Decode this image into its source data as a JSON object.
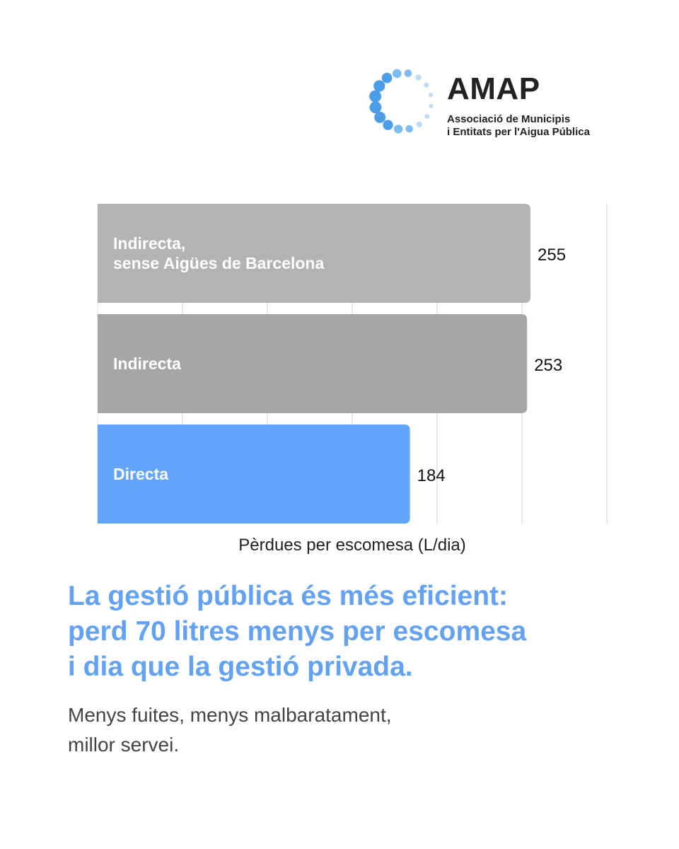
{
  "logo": {
    "name": "AMAP",
    "subtitle_line1": "Associació de Municipis",
    "subtitle_line2": "i Entitats per l'Aigua Pública",
    "colors": [
      "#bcdcf6",
      "#4b9ee6",
      "#1a74d1"
    ]
  },
  "chart_data": {
    "type": "bar",
    "orientation": "horizontal",
    "categories": [
      [
        "Indirecta,",
        "sense Aigües de Barcelona"
      ],
      [
        "Indirecta"
      ],
      [
        "Directa"
      ]
    ],
    "values": [
      255,
      253,
      184
    ],
    "colors": [
      "#b3b3b3",
      "#a6a6a6",
      "#63a5fa"
    ],
    "xlabel": "Pèrdues per escomesa (L/dia)",
    "xlim": [
      0,
      300
    ],
    "grid": true,
    "tick_labels_shown": false
  },
  "headline": {
    "line1": "La gestió pública és més eficient:",
    "line2": "perd 70 litres menys per escomesa",
    "line3": "i dia que la gestió privada."
  },
  "subtext": {
    "line1": "Menys fuites, menys malbaratament,",
    "line2": "millor servei."
  }
}
